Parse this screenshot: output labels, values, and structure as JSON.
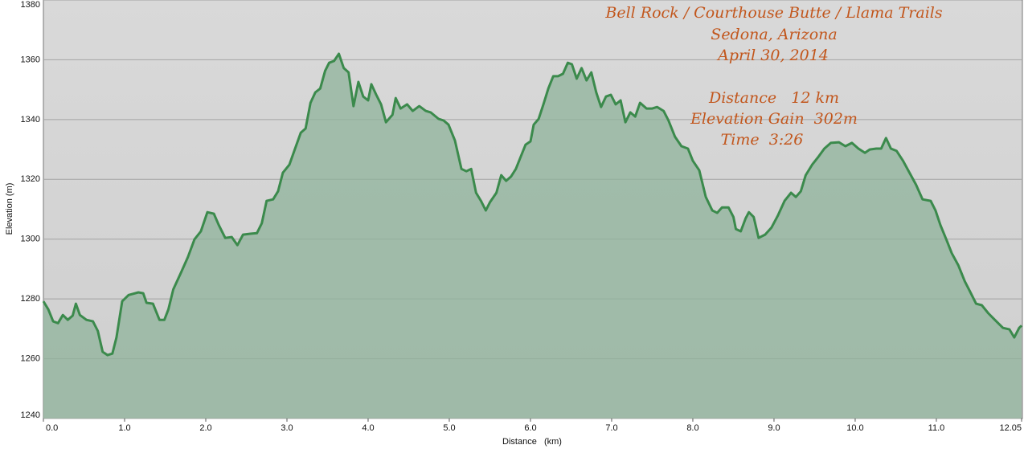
{
  "chart_data": {
    "type": "area",
    "title": "Bell Rock / Courthouse Butte / Llama Trails",
    "annotations": [
      "Sedona, Arizona",
      "April 30, 2014",
      "Distance   12 km",
      "Elevation Gain  302m",
      "Time  3:26"
    ],
    "x_label": "Distance   (km)",
    "y_label": "Elevation (m)",
    "xlim": [
      0,
      12.05
    ],
    "ylim": [
      1240,
      1380
    ],
    "xticks": [
      {
        "value": 0,
        "label": "0.0"
      },
      {
        "value": 1,
        "label": "1.0"
      },
      {
        "value": 2,
        "label": "2.0"
      },
      {
        "value": 3,
        "label": "3.0"
      },
      {
        "value": 4,
        "label": "4.0"
      },
      {
        "value": 5,
        "label": "5.0"
      },
      {
        "value": 6,
        "label": "6.0"
      },
      {
        "value": 7,
        "label": "7.0"
      },
      {
        "value": 8,
        "label": "8.0"
      },
      {
        "value": 9,
        "label": "9.0"
      },
      {
        "value": 10,
        "label": "10.0"
      },
      {
        "value": 11,
        "label": "11.0"
      },
      12.05
    ],
    "yticks": [
      1240,
      1260,
      1280,
      1300,
      1320,
      1340,
      1360,
      1380
    ],
    "grid": true,
    "color": "#3b8a4c",
    "fill_color": "#8fb39b",
    "x": [
      0.0,
      0.06,
      0.12,
      0.18,
      0.24,
      0.3,
      0.36,
      0.4,
      0.45,
      0.53,
      0.61,
      0.67,
      0.73,
      0.79,
      0.85,
      0.9,
      0.97,
      1.05,
      1.17,
      1.23,
      1.27,
      1.35,
      1.43,
      1.49,
      1.54,
      1.6,
      1.7,
      1.78,
      1.86,
      1.94,
      2.02,
      2.1,
      2.16,
      2.24,
      2.32,
      2.39,
      2.46,
      2.55,
      2.63,
      2.69,
      2.75,
      2.83,
      2.89,
      2.95,
      3.03,
      3.09,
      3.17,
      3.23,
      3.29,
      3.35,
      3.41,
      3.47,
      3.52,
      3.58,
      3.64,
      3.7,
      3.76,
      3.82,
      3.88,
      3.94,
      4.0,
      4.04,
      4.1,
      4.16,
      4.22,
      4.3,
      4.34,
      4.4,
      4.48,
      4.55,
      4.63,
      4.71,
      4.77,
      4.87,
      4.93,
      4.99,
      5.07,
      5.15,
      5.21,
      5.27,
      5.33,
      5.39,
      5.45,
      5.5,
      5.58,
      5.64,
      5.7,
      5.76,
      5.82,
      5.88,
      5.94,
      6.0,
      6.04,
      6.1,
      6.16,
      6.22,
      6.28,
      6.34,
      6.4,
      6.46,
      6.51,
      6.57,
      6.63,
      6.69,
      6.75,
      6.81,
      6.87,
      6.93,
      6.99,
      7.05,
      7.11,
      7.17,
      7.23,
      7.29,
      7.35,
      7.43,
      7.5,
      7.56,
      7.64,
      7.7,
      7.78,
      7.86,
      7.94,
      8.0,
      8.08,
      8.16,
      8.24,
      8.3,
      8.36,
      8.44,
      8.5,
      8.53,
      8.59,
      8.65,
      8.69,
      8.75,
      8.81,
      8.89,
      8.97,
      9.05,
      9.13,
      9.21,
      9.27,
      9.33,
      9.39,
      9.47,
      9.54,
      9.62,
      9.7,
      9.8,
      9.88,
      9.96,
      10.04,
      10.12,
      10.18,
      10.26,
      10.32,
      10.38,
      10.44,
      10.51,
      10.59,
      10.67,
      10.75,
      10.83,
      10.93,
      10.99,
      11.05,
      11.13,
      11.19,
      11.27,
      11.35,
      11.41,
      11.49,
      11.56,
      11.64,
      11.72,
      11.82,
      11.9,
      11.96,
      12.02,
      12.05
    ],
    "values": [
      1279.2,
      1276.5,
      1272.5,
      1271.9,
      1274.6,
      1273.0,
      1274.4,
      1278.4,
      1274.6,
      1273.0,
      1272.5,
      1269.3,
      1262.3,
      1261.2,
      1261.7,
      1267.1,
      1279.2,
      1281.3,
      1282.2,
      1281.9,
      1278.7,
      1278.4,
      1273.0,
      1273.0,
      1276.5,
      1283.2,
      1289.1,
      1294.0,
      1299.9,
      1302.6,
      1309.0,
      1308.5,
      1304.7,
      1300.4,
      1300.7,
      1298.0,
      1301.5,
      1301.8,
      1302.0,
      1305.3,
      1312.8,
      1313.3,
      1316.0,
      1322.2,
      1324.9,
      1329.5,
      1335.6,
      1337.0,
      1345.6,
      1349.1,
      1350.4,
      1356.3,
      1359.0,
      1359.6,
      1362.0,
      1357.2,
      1355.8,
      1344.5,
      1352.6,
      1347.7,
      1346.4,
      1351.8,
      1348.3,
      1345.1,
      1339.1,
      1341.6,
      1347.2,
      1343.7,
      1345.1,
      1342.9,
      1344.5,
      1342.9,
      1342.4,
      1340.2,
      1339.7,
      1338.3,
      1333.0,
      1323.5,
      1322.7,
      1323.5,
      1315.5,
      1312.8,
      1309.6,
      1312.3,
      1315.5,
      1321.4,
      1319.5,
      1320.9,
      1323.5,
      1327.6,
      1331.6,
      1332.7,
      1338.3,
      1340.2,
      1345.1,
      1350.4,
      1354.5,
      1354.5,
      1355.3,
      1359.0,
      1358.5,
      1353.7,
      1357.2,
      1353.1,
      1355.8,
      1349.1,
      1344.2,
      1347.7,
      1348.3,
      1345.1,
      1346.4,
      1339.1,
      1342.4,
      1341.0,
      1345.6,
      1343.7,
      1343.7,
      1344.2,
      1342.9,
      1339.7,
      1334.3,
      1331.1,
      1330.3,
      1326.2,
      1323.0,
      1314.1,
      1309.6,
      1308.8,
      1310.6,
      1310.6,
      1307.4,
      1303.4,
      1302.6,
      1306.9,
      1309.0,
      1307.4,
      1300.4,
      1301.5,
      1303.9,
      1308.0,
      1312.8,
      1315.5,
      1314.1,
      1316.0,
      1321.4,
      1324.9,
      1327.3,
      1330.3,
      1332.2,
      1332.4,
      1331.1,
      1332.2,
      1330.3,
      1328.9,
      1330.0,
      1330.3,
      1330.3,
      1333.8,
      1330.3,
      1329.5,
      1326.2,
      1322.2,
      1318.2,
      1313.3,
      1312.8,
      1309.6,
      1304.7,
      1299.4,
      1295.3,
      1291.3,
      1285.9,
      1282.7,
      1278.4,
      1277.9,
      1275.2,
      1273.0,
      1270.3,
      1269.8,
      1267.1,
      1270.3,
      1271.1
    ]
  }
}
